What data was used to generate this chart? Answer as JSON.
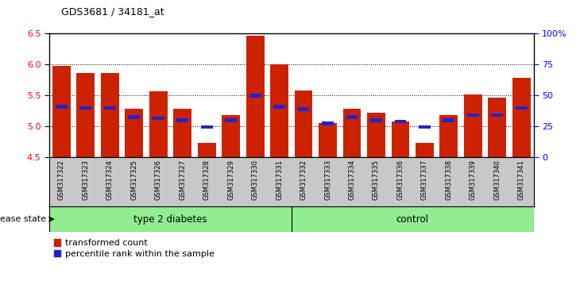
{
  "title": "GDS3681 / 34181_at",
  "samples": [
    "GSM317322",
    "GSM317323",
    "GSM317324",
    "GSM317325",
    "GSM317326",
    "GSM317327",
    "GSM317328",
    "GSM317329",
    "GSM317330",
    "GSM317331",
    "GSM317332",
    "GSM317333",
    "GSM317334",
    "GSM317335",
    "GSM317336",
    "GSM317337",
    "GSM317338",
    "GSM317339",
    "GSM317340",
    "GSM317341"
  ],
  "bar_values": [
    5.98,
    5.87,
    5.87,
    5.28,
    5.57,
    5.28,
    4.73,
    5.18,
    6.47,
    6.0,
    5.58,
    5.05,
    5.29,
    5.22,
    5.08,
    4.73,
    5.19,
    5.52,
    5.47,
    5.79
  ],
  "percentile_values": [
    5.32,
    5.3,
    5.3,
    5.15,
    5.13,
    5.1,
    4.99,
    5.1,
    5.5,
    5.32,
    5.28,
    5.05,
    5.15,
    5.1,
    5.08,
    4.99,
    5.1,
    5.18,
    5.18,
    5.3
  ],
  "bar_color": "#cc2200",
  "percentile_color": "#2222cc",
  "ymin": 4.5,
  "ymax": 6.5,
  "yticks": [
    4.5,
    5.0,
    5.5,
    6.0,
    6.5
  ],
  "right_yticks": [
    0,
    25,
    50,
    75,
    100
  ],
  "right_ytick_labels": [
    "0",
    "25",
    "50",
    "75",
    "100%"
  ],
  "grid_values": [
    5.0,
    5.5,
    6.0
  ],
  "type2_diabetes_count": 10,
  "control_count": 10,
  "group_label_diabetes": "type 2 diabetes",
  "group_label_control": "control",
  "disease_state_label": "disease state",
  "legend_bar_label": "transformed count",
  "legend_percentile_label": "percentile rank within the sample",
  "xtick_bg_color": "#c8c8c8",
  "group_bg_color": "#90ee90",
  "group_border_color": "#000000",
  "plot_bg_color": "#ffffff"
}
